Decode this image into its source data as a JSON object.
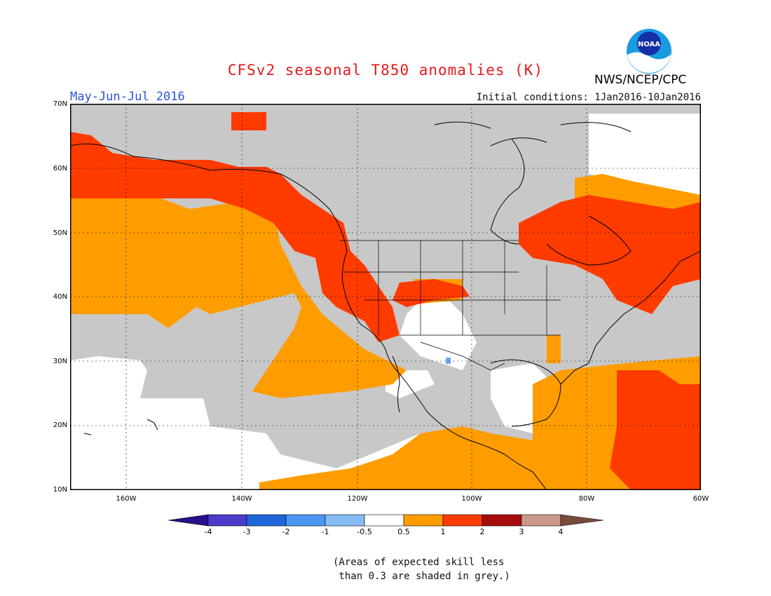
{
  "header": {
    "title": "CFSv2 seasonal T850 anomalies (K)",
    "period": "May-Jun-Jul 2016",
    "initial_conditions": "Initial conditions: 1Jan2016-10Jan2016",
    "agency": "NWS/NCEP/CPC",
    "logo_text": "NOAA"
  },
  "map": {
    "lat_labels": [
      "70N",
      "60N",
      "50N",
      "40N",
      "30N",
      "20N",
      "10N"
    ],
    "lon_labels": [
      "160W",
      "140W",
      "120W",
      "100W",
      "80W",
      "60W"
    ],
    "lat_range": [
      10,
      70
    ],
    "lon_range": [
      -171,
      -60
    ]
  },
  "legend": {
    "ticks": [
      "-4",
      "-3",
      "-2",
      "-1",
      "-0.5",
      "0.5",
      "1",
      "2",
      "3",
      "4"
    ],
    "colors": [
      "#2a0f8c",
      "#4b3cc8",
      "#1f67d8",
      "#4a96f0",
      "#86bcf5",
      "#ffffff",
      "#ff9d00",
      "#ff3b00",
      "#a70c0c",
      "#c8998a",
      "#7a4a3a"
    ]
  },
  "note": {
    "line1": "(Areas of expected skill less",
    "line2": " than 0.3 are shaded in grey.)"
  },
  "colors": {
    "grey": "#c8c8c8",
    "orange": "#ff9d00",
    "red": "#ff3b00",
    "white": "#ffffff",
    "light_blue": "#6fa8ef"
  }
}
